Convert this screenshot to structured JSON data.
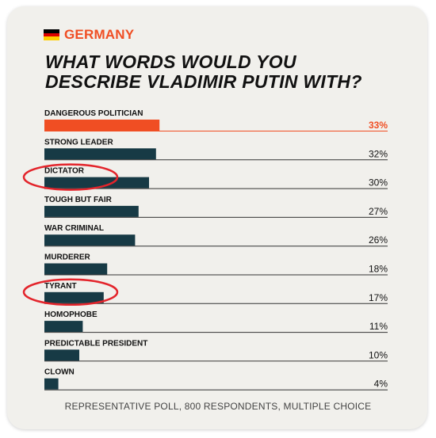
{
  "header": {
    "country": "GERMANY",
    "title_line1": "WHAT WORDS WOULD YOU",
    "title_line2": "DESCRIBE VLADIMIR PUTIN WITH?"
  },
  "footer": "REPRESENTATIVE POLL, 800 RESPONDENTS, MULTIPLE CHOICE",
  "colors": {
    "accent": "#f04e23",
    "bar": "#173a45",
    "circle": "#e3242b",
    "flag": [
      "#000000",
      "#dd0000",
      "#ffce00"
    ],
    "text": "#111111"
  },
  "chart_data": {
    "type": "bar",
    "orientation": "horizontal",
    "categories": [
      "DANGEROUS POLITICIAN",
      "STRONG LEADER",
      "DICTATOR",
      "TOUGH BUT FAIR",
      "WAR CRIMINAL",
      "MURDERER",
      "TYRANT",
      "HOMOPHOBE",
      "PREDICTABLE PRESIDENT",
      "CLOWN"
    ],
    "values": [
      33,
      32,
      30,
      27,
      26,
      18,
      17,
      11,
      10,
      4
    ],
    "value_labels": [
      "33%",
      "32%",
      "30%",
      "27%",
      "26%",
      "18%",
      "17%",
      "11%",
      "10%",
      "4%"
    ],
    "highlighted": [
      "DANGEROUS POLITICIAN"
    ],
    "circled": [
      "DICTATOR",
      "TYRANT"
    ],
    "unit": "%"
  }
}
